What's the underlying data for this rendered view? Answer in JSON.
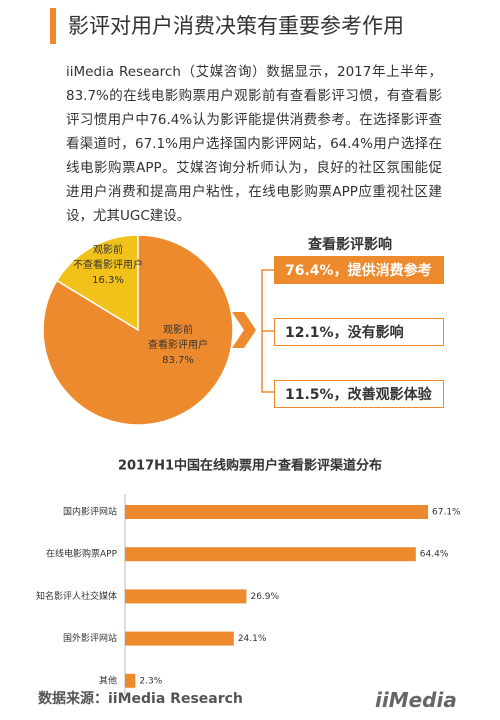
{
  "header": {
    "title": "影评对用户消费决策有重要参考作用"
  },
  "paragraph": "iiMedia Research（艾媒咨询）数据显示，2017年上半年，83.7%的在线电影购票用户观影前有查看影评习惯，有查看影评习惯用户中76.4%认为影评能提供消费参考。在选择影评查看渠道时，67.1%用户选择国内影评网站，64.4%用户选择在线电影购票APP。艾媒咨询分析师认为，良好的社区氛围能促进用户消费和提高用户粘性，在线电影购票APP应重视社区建设，尤其UGC建设。",
  "impact": {
    "title": "查看影评影响",
    "items": [
      "76.4%，提供消费参考",
      "12.1%，没有影响",
      "11.5%，改善观影体验"
    ]
  },
  "chart_data": [
    {
      "type": "pie",
      "categories": [
        "观影前\n不查看影评用户",
        "观影前\n查看影评用户"
      ],
      "values": [
        16.3,
        83.7
      ],
      "value_labels": [
        "16.3%",
        "83.7%"
      ],
      "colors": [
        "#f2c21a",
        "#ee8a2e"
      ]
    },
    {
      "type": "hbar",
      "title": "2017H1中国在线购票用户查看影评渠道分布",
      "categories": [
        "国内影评网站",
        "在线电影购票APP",
        "知名影评人社交媒体",
        "国外影评网站",
        "其他"
      ],
      "values": [
        67.1,
        64.4,
        26.9,
        24.1,
        2.3
      ],
      "value_labels": [
        "67.1%",
        "64.4%",
        "26.9%",
        "24.1%",
        "2.3%"
      ],
      "color": "#ee8a2e"
    }
  ],
  "footer": {
    "source": "数据来源：iiMedia Research",
    "logo": "iiMedia"
  }
}
